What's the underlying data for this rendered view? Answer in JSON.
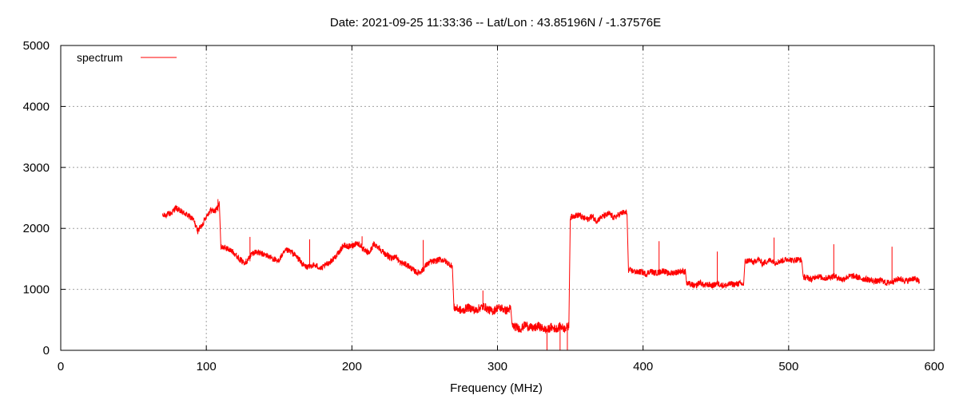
{
  "chart_data": {
    "type": "line",
    "title": "Date: 2021-09-25 11:33:36  --  Lat/Lon : 43.85196N / -1.37576E",
    "xlabel": "Frequency (MHz)",
    "ylabel": "",
    "xlim": [
      0,
      600
    ],
    "ylim": [
      0,
      5000
    ],
    "xticks": [
      0,
      100,
      200,
      300,
      400,
      500,
      600
    ],
    "yticks": [
      0,
      1000,
      2000,
      3000,
      4000,
      5000
    ],
    "xtick_labels": [
      "0",
      "100",
      "200",
      "300",
      "400",
      "500",
      "600"
    ],
    "ytick_labels": [
      "0",
      "1000",
      "2000",
      "3000",
      "4000",
      "5000"
    ],
    "grid": true,
    "legend_position": "top-left",
    "series": [
      {
        "name": "spectrum",
        "color": "#ff0000",
        "x": [
          70,
          73,
          76,
          79,
          82,
          85,
          88,
          91,
          94,
          97,
          100,
          103,
          106,
          109,
          110,
          113,
          116,
          119,
          122,
          125,
          128,
          131,
          134,
          137,
          140,
          143,
          146,
          149,
          152,
          155,
          158,
          161,
          164,
          167,
          170,
          173,
          176,
          179,
          182,
          185,
          188,
          191,
          194,
          197,
          200,
          203,
          206,
          209,
          212,
          215,
          218,
          221,
          224,
          227,
          230,
          233,
          236,
          239,
          242,
          245,
          248,
          251,
          254,
          257,
          260,
          263,
          266,
          269,
          270,
          273,
          276,
          279,
          282,
          285,
          288,
          291,
          294,
          297,
          300,
          303,
          306,
          309,
          310,
          313,
          316,
          319,
          322,
          325,
          328,
          331,
          334,
          337,
          340,
          343,
          346,
          349,
          350,
          353,
          356,
          359,
          362,
          365,
          368,
          371,
          374,
          377,
          380,
          383,
          386,
          389,
          390,
          393,
          396,
          399,
          402,
          405,
          408,
          411,
          414,
          417,
          420,
          423,
          426,
          429,
          430,
          433,
          436,
          439,
          442,
          445,
          448,
          451,
          454,
          457,
          460,
          463,
          466,
          469,
          470,
          473,
          476,
          479,
          482,
          485,
          488,
          491,
          494,
          497,
          500,
          503,
          506,
          509,
          510,
          513,
          516,
          519,
          522,
          525,
          528,
          531,
          534,
          537,
          540,
          543,
          546,
          549,
          552,
          555,
          558,
          561,
          564,
          567,
          570,
          573,
          576,
          579,
          582,
          585,
          588,
          590
        ],
        "y": [
          2200,
          2230,
          2250,
          2340,
          2280,
          2250,
          2200,
          2150,
          1960,
          2050,
          2200,
          2300,
          2280,
          2400,
          1700,
          1680,
          1650,
          1600,
          1520,
          1450,
          1460,
          1580,
          1620,
          1590,
          1570,
          1540,
          1500,
          1450,
          1560,
          1640,
          1620,
          1560,
          1480,
          1390,
          1360,
          1400,
          1380,
          1340,
          1400,
          1450,
          1520,
          1600,
          1720,
          1700,
          1710,
          1760,
          1720,
          1620,
          1600,
          1740,
          1700,
          1620,
          1560,
          1500,
          1550,
          1440,
          1420,
          1380,
          1320,
          1270,
          1300,
          1400,
          1450,
          1460,
          1490,
          1480,
          1430,
          1380,
          700,
          680,
          640,
          700,
          690,
          650,
          700,
          720,
          660,
          640,
          700,
          690,
          650,
          690,
          400,
          380,
          350,
          420,
          380,
          360,
          400,
          360,
          330,
          380,
          350,
          390,
          360,
          400,
          2180,
          2210,
          2220,
          2170,
          2150,
          2200,
          2120,
          2180,
          2210,
          2240,
          2170,
          2220,
          2260,
          2250,
          1320,
          1300,
          1280,
          1290,
          1250,
          1300,
          1270,
          1280,
          1310,
          1260,
          1270,
          1280,
          1300,
          1290,
          1100,
          1080,
          1050,
          1120,
          1060,
          1080,
          1060,
          1100,
          1070,
          1060,
          1090,
          1080,
          1100,
          1080,
          1450,
          1480,
          1440,
          1500,
          1420,
          1460,
          1480,
          1440,
          1460,
          1480,
          1500,
          1470,
          1490,
          1480,
          1200,
          1190,
          1160,
          1220,
          1200,
          1180,
          1200,
          1220,
          1190,
          1160,
          1200,
          1220,
          1210,
          1180,
          1170,
          1160,
          1140,
          1130,
          1150,
          1100,
          1120,
          1140,
          1180,
          1150,
          1140,
          1180,
          1160,
          1120
        ]
      }
    ],
    "spikes": [
      {
        "x": 108,
        "y": 2480
      },
      {
        "x": 130,
        "y": 1860
      },
      {
        "x": 171,
        "y": 1820
      },
      {
        "x": 207,
        "y": 1870
      },
      {
        "x": 249,
        "y": 1810
      },
      {
        "x": 290,
        "y": 980
      },
      {
        "x": 411,
        "y": 1790
      },
      {
        "x": 451,
        "y": 1620
      },
      {
        "x": 490,
        "y": 1850
      },
      {
        "x": 531,
        "y": 1740
      },
      {
        "x": 571,
        "y": 1700
      },
      {
        "x": 334,
        "y": 0
      },
      {
        "x": 343,
        "y": 0
      },
      {
        "x": 348,
        "y": 0
      }
    ]
  }
}
